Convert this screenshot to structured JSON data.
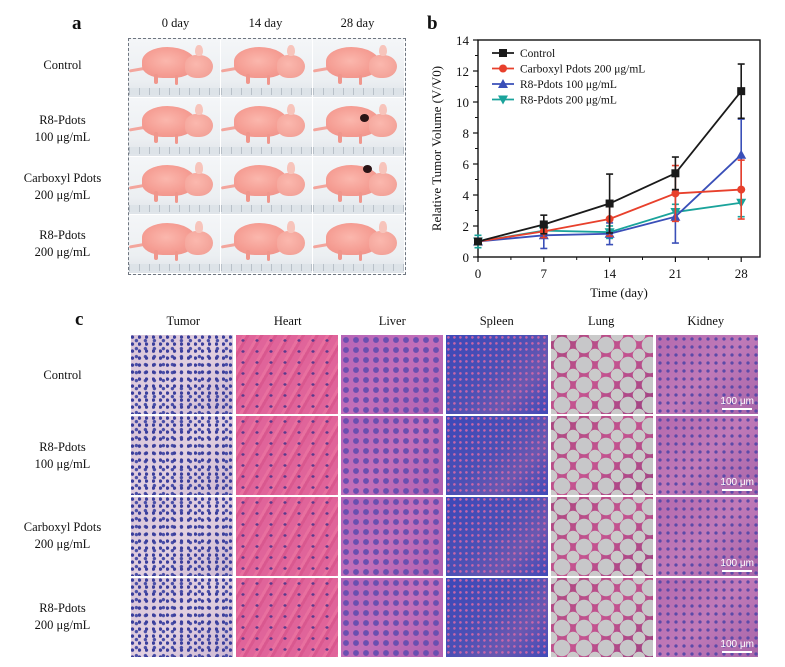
{
  "figure": {
    "panel_a": {
      "letter": "a",
      "columns": [
        "0 day",
        "14 day",
        "28 day"
      ],
      "rows": [
        {
          "line1": "Control",
          "line2": ""
        },
        {
          "line1": "R8-Pdots",
          "line2": "100 μg/mL"
        },
        {
          "line1": "Carboxyl Pdots",
          "line2": "200 μg/mL"
        },
        {
          "line1": "R8-Pdots",
          "line2": "200 μg/mL"
        }
      ]
    },
    "panel_b": {
      "letter": "b"
    },
    "panel_c": {
      "letter": "c",
      "columns": [
        "Tumor",
        "Heart",
        "Liver",
        "Spleen",
        "Lung",
        "Kidney"
      ],
      "rows": [
        {
          "line1": "Control",
          "line2": ""
        },
        {
          "line1": "R8-Pdots",
          "line2": "100 μg/mL"
        },
        {
          "line1": "Carboxyl Pdots",
          "line2": "200 μg/mL"
        },
        {
          "line1": "R8-Pdots",
          "line2": "200 μg/mL"
        }
      ],
      "scale_bar_label": "100 μm"
    }
  },
  "chart_data": {
    "type": "line",
    "title": "",
    "xlabel": "Time (day)",
    "ylabel": "Relative Tumor Volume (V/V0)",
    "x": [
      0,
      7,
      14,
      21,
      28
    ],
    "xticks": [
      0,
      7,
      14,
      21,
      28
    ],
    "yticks": [
      0,
      2,
      4,
      6,
      8,
      10,
      12,
      14
    ],
    "xlim": [
      0,
      30
    ],
    "ylim": [
      0,
      14
    ],
    "grid": false,
    "legend_position": "top-left",
    "series": [
      {
        "name": "Control",
        "color": "#1a1a1a",
        "marker": "square",
        "values": [
          1.0,
          2.1,
          3.45,
          5.4,
          10.7
        ],
        "error": [
          0.1,
          0.6,
          1.9,
          1.05,
          1.75
        ]
      },
      {
        "name": "Carboxyl Pdots 200 μg/mL",
        "color": "#e8402c",
        "marker": "circle",
        "values": [
          1.0,
          1.65,
          2.45,
          4.1,
          4.35
        ],
        "error": [
          0.2,
          0.4,
          1.1,
          1.8,
          1.9
        ]
      },
      {
        "name": "R8-Pdots 100 μg/mL",
        "color": "#3a4fb8",
        "marker": "triangle-up",
        "values": [
          1.0,
          1.4,
          1.5,
          2.6,
          6.6
        ],
        "error": [
          0.15,
          0.85,
          0.7,
          1.7,
          2.3
        ]
      },
      {
        "name": "R8-Pdots 200 μg/mL",
        "color": "#1aa39b",
        "marker": "triangle-down",
        "values": [
          1.0,
          1.7,
          1.6,
          2.9,
          3.5
        ],
        "error": [
          0.4,
          0.2,
          0.4,
          0.5,
          0.9
        ]
      }
    ]
  }
}
